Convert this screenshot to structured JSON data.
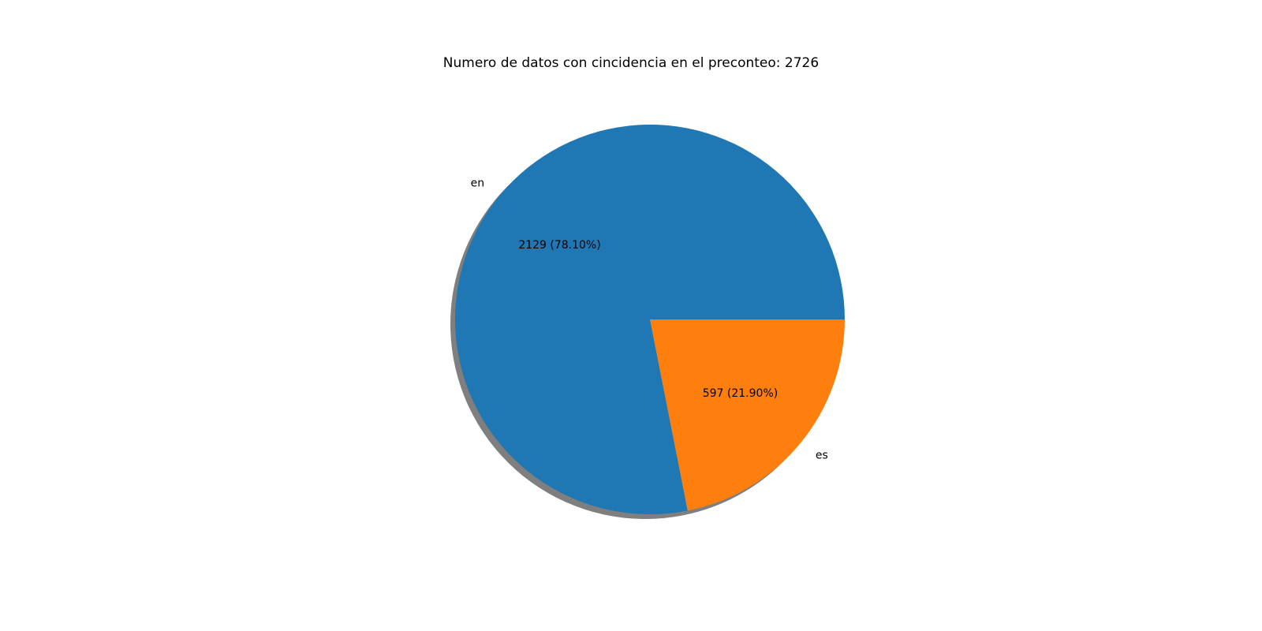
{
  "chart_data": {
    "type": "pie",
    "title": "Numero de datos con cincidencia en el preconteo: 2726",
    "slices": [
      {
        "label": "en",
        "value": 2129,
        "percent": 78.1,
        "autopct": "2129 (78.10%)",
        "color": "#1f77b4"
      },
      {
        "label": "es",
        "value": 597,
        "percent": 21.9,
        "autopct": "597 (21.90%)",
        "color": "#ff7f0e"
      }
    ],
    "start_angle_deg": 0,
    "direction": "counterclockwise",
    "shadow": true,
    "legend": "none"
  }
}
